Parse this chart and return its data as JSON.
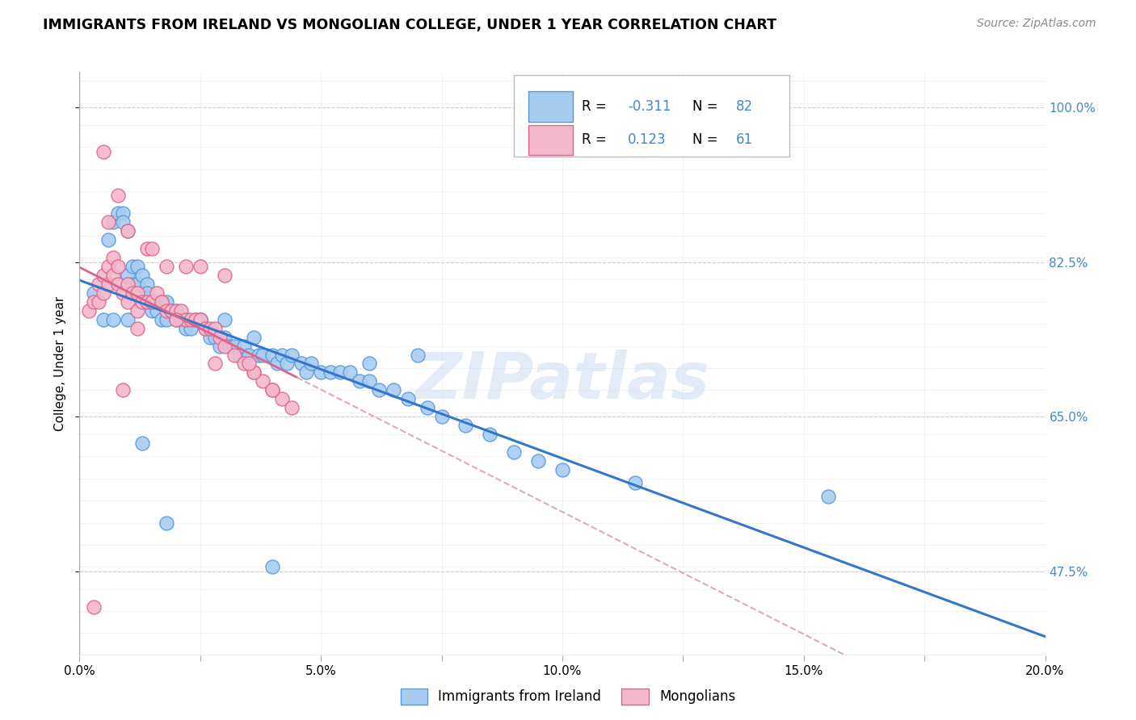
{
  "title": "IMMIGRANTS FROM IRELAND VS MONGOLIAN COLLEGE, UNDER 1 YEAR CORRELATION CHART",
  "source": "Source: ZipAtlas.com",
  "ylabel": "College, Under 1 year",
  "xmin": 0.0,
  "xmax": 0.2,
  "ymin": 0.38,
  "ymax": 1.04,
  "ytick_labels_show": [
    0.475,
    0.65,
    0.825,
    1.0
  ],
  "xticks": [
    0.0,
    0.025,
    0.05,
    0.075,
    0.1,
    0.125,
    0.15,
    0.175,
    0.2
  ],
  "xtick_labels_show": [
    0.0,
    0.05,
    0.1,
    0.15,
    0.2
  ],
  "blue_fill": "#a8ccf0",
  "blue_edge": "#5599dd",
  "pink_fill": "#f4b8cc",
  "pink_edge": "#dd6688",
  "blue_line_color": "#3377cc",
  "pink_line_color": "#dd6688",
  "pink_dash_color": "#ddaabb",
  "legend_R1": "-0.311",
  "legend_N1": "82",
  "legend_R2": "0.123",
  "legend_N2": "61",
  "legend_label1": "Immigrants from Ireland",
  "legend_label2": "Mongolians",
  "watermark": "ZIPatlas",
  "blue_scatter_x": [
    0.003,
    0.005,
    0.006,
    0.007,
    0.008,
    0.009,
    0.009,
    0.01,
    0.01,
    0.011,
    0.011,
    0.012,
    0.012,
    0.013,
    0.013,
    0.014,
    0.014,
    0.015,
    0.015,
    0.016,
    0.016,
    0.017,
    0.017,
    0.018,
    0.018,
    0.019,
    0.02,
    0.02,
    0.021,
    0.022,
    0.022,
    0.023,
    0.024,
    0.025,
    0.026,
    0.027,
    0.028,
    0.029,
    0.03,
    0.031,
    0.032,
    0.033,
    0.034,
    0.035,
    0.036,
    0.037,
    0.038,
    0.04,
    0.041,
    0.042,
    0.043,
    0.044,
    0.046,
    0.047,
    0.048,
    0.05,
    0.052,
    0.054,
    0.056,
    0.058,
    0.06,
    0.062,
    0.065,
    0.068,
    0.072,
    0.075,
    0.08,
    0.085,
    0.09,
    0.095,
    0.1,
    0.115,
    0.155,
    0.06,
    0.07,
    0.03,
    0.018,
    0.025,
    0.04,
    0.01,
    0.007,
    0.013
  ],
  "blue_scatter_y": [
    0.79,
    0.76,
    0.85,
    0.87,
    0.88,
    0.88,
    0.87,
    0.86,
    0.81,
    0.82,
    0.8,
    0.82,
    0.8,
    0.81,
    0.79,
    0.8,
    0.79,
    0.78,
    0.77,
    0.78,
    0.77,
    0.78,
    0.76,
    0.78,
    0.76,
    0.77,
    0.77,
    0.76,
    0.76,
    0.76,
    0.75,
    0.75,
    0.76,
    0.76,
    0.75,
    0.74,
    0.74,
    0.73,
    0.74,
    0.73,
    0.73,
    0.72,
    0.73,
    0.72,
    0.74,
    0.72,
    0.72,
    0.72,
    0.71,
    0.72,
    0.71,
    0.72,
    0.71,
    0.7,
    0.71,
    0.7,
    0.7,
    0.7,
    0.7,
    0.69,
    0.69,
    0.68,
    0.68,
    0.67,
    0.66,
    0.65,
    0.64,
    0.63,
    0.61,
    0.6,
    0.59,
    0.575,
    0.56,
    0.71,
    0.72,
    0.76,
    0.53,
    0.76,
    0.48,
    0.76,
    0.76,
    0.62
  ],
  "pink_scatter_x": [
    0.002,
    0.003,
    0.004,
    0.004,
    0.005,
    0.005,
    0.006,
    0.006,
    0.007,
    0.007,
    0.008,
    0.008,
    0.009,
    0.01,
    0.01,
    0.011,
    0.012,
    0.012,
    0.013,
    0.014,
    0.015,
    0.016,
    0.017,
    0.018,
    0.019,
    0.02,
    0.021,
    0.022,
    0.023,
    0.024,
    0.025,
    0.026,
    0.027,
    0.028,
    0.029,
    0.03,
    0.032,
    0.034,
    0.036,
    0.038,
    0.04,
    0.042,
    0.044,
    0.014,
    0.02,
    0.025,
    0.03,
    0.036,
    0.012,
    0.018,
    0.006,
    0.008,
    0.01,
    0.015,
    0.022,
    0.028,
    0.035,
    0.04,
    0.005,
    0.009,
    0.003
  ],
  "pink_scatter_y": [
    0.77,
    0.78,
    0.8,
    0.78,
    0.81,
    0.79,
    0.82,
    0.8,
    0.83,
    0.81,
    0.82,
    0.8,
    0.79,
    0.8,
    0.78,
    0.79,
    0.79,
    0.77,
    0.78,
    0.78,
    0.78,
    0.79,
    0.78,
    0.77,
    0.77,
    0.77,
    0.77,
    0.76,
    0.76,
    0.76,
    0.76,
    0.75,
    0.75,
    0.75,
    0.74,
    0.73,
    0.72,
    0.71,
    0.7,
    0.69,
    0.68,
    0.67,
    0.66,
    0.84,
    0.76,
    0.82,
    0.81,
    0.7,
    0.75,
    0.82,
    0.87,
    0.9,
    0.86,
    0.84,
    0.82,
    0.71,
    0.71,
    0.68,
    0.95,
    0.68,
    0.435
  ]
}
